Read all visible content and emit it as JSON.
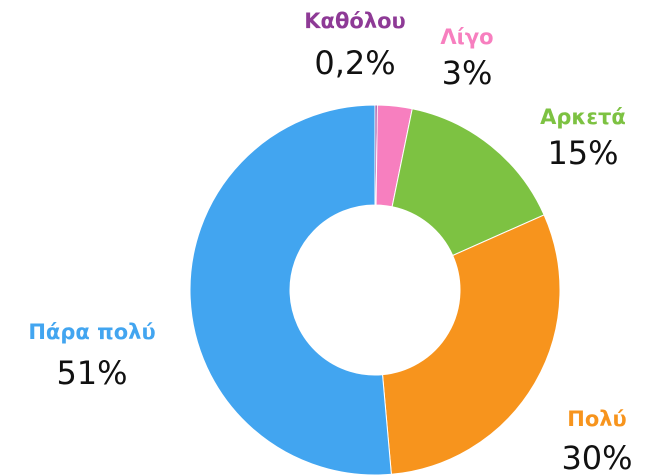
{
  "chart_data": {
    "type": "pie",
    "categories": [
      "Καθόλου",
      "Λίγο",
      "Αρκετά",
      "Πολύ",
      "Πάρα πολύ"
    ],
    "values": [
      0.2,
      3,
      15,
      30,
      51
    ],
    "value_labels": [
      "0,2%",
      "3%",
      "15%",
      "30%",
      "51%"
    ],
    "colors": [
      "#8e3a96",
      "#f77fbf",
      "#7dc242",
      "#f7941d",
      "#42a5f0"
    ]
  }
}
